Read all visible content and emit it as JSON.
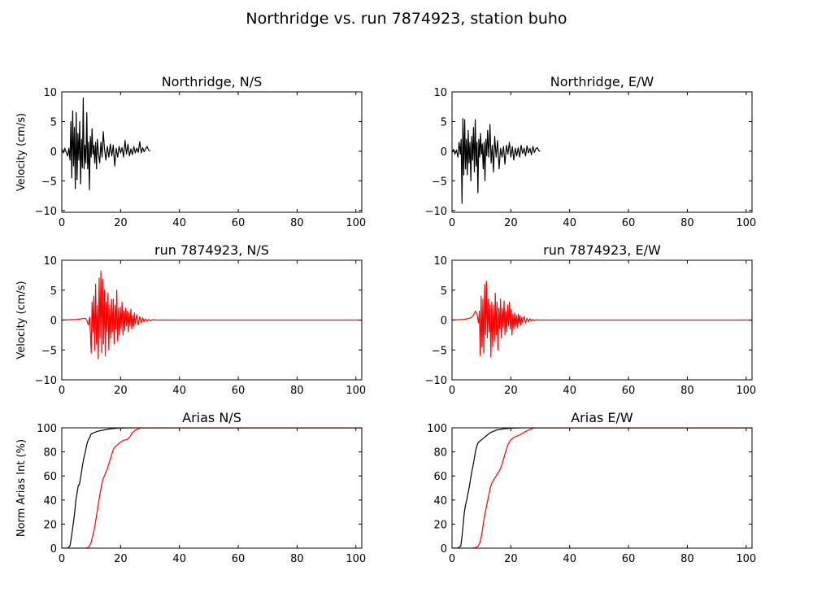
{
  "figure": {
    "title": "Northridge vs. run 7874923, station buho"
  },
  "chart_data": [
    {
      "id": "nr-ns",
      "type": "line",
      "title": "Northridge, N/S",
      "xlabel": "",
      "ylabel": "Velocity (cm/s)",
      "xlim": [
        0,
        102
      ],
      "ylim": [
        -10.3,
        10
      ],
      "xticks": [
        0,
        20,
        40,
        60,
        80,
        100
      ],
      "yticks": [
        10,
        5,
        0,
        -5,
        -10
      ],
      "grid": false,
      "series": [
        {
          "color": "#000000",
          "x": [
            0,
            0.5,
            1,
            1.5,
            2,
            2.4,
            2.8,
            3.1,
            3.4,
            3.7,
            4,
            4.3,
            4.6,
            4.9,
            5.2,
            5.5,
            5.8,
            6.1,
            6.4,
            6.7,
            7,
            7.3,
            7.6,
            7.9,
            8.2,
            8.5,
            8.8,
            9.1,
            9.4,
            9.7,
            10,
            10.3,
            10.6,
            10.9,
            11.2,
            11.5,
            11.8,
            12.1,
            12.5,
            12.9,
            13.3,
            13.7,
            14.1,
            14.5,
            15,
            15.5,
            16,
            16.5,
            17,
            17.5,
            18,
            18.5,
            19,
            19.5,
            20,
            20.5,
            21,
            21.5,
            22,
            22.5,
            23,
            23.5,
            24,
            24.5,
            25,
            25.5,
            26,
            26.5,
            27,
            27.5,
            28,
            28.5,
            29,
            29.5,
            30
          ],
          "y": [
            0.4,
            -0.3,
            0.5,
            -0.2,
            -0.8,
            0.5,
            -1.5,
            5.0,
            -4.5,
            6.8,
            -2.5,
            4.0,
            -6.3,
            6.5,
            -4.8,
            3.0,
            -1.5,
            5.0,
            -5.5,
            2.0,
            -2.8,
            9.0,
            -3.0,
            1.0,
            -2.0,
            6.5,
            -3.0,
            1.5,
            -6.5,
            2.5,
            -1.0,
            3.8,
            -0.5,
            1.0,
            -2.0,
            1.5,
            -3.0,
            2.0,
            -0.5,
            -2.0,
            1.5,
            -1.0,
            3.3,
            0.5,
            -1.5,
            0.8,
            -1.0,
            1.2,
            -0.8,
            1.0,
            -2.5,
            0.5,
            -1.0,
            0.8,
            -0.3,
            0.6,
            -1.0,
            1.8,
            -0.5,
            1.2,
            -0.8,
            0.4,
            -0.6,
            0.8,
            -0.3,
            0.5,
            -0.2,
            1.6,
            -0.3,
            0.6,
            -0.1,
            0.4,
            0.8,
            0.2,
            0.0
          ]
        }
      ]
    },
    {
      "id": "nr-ew",
      "type": "line",
      "title": "Northridge, E/W",
      "xlabel": "",
      "ylabel": "",
      "xlim": [
        0,
        102
      ],
      "ylim": [
        -10.3,
        10
      ],
      "xticks": [
        0,
        20,
        40,
        60,
        80,
        100
      ],
      "yticks": [
        10,
        5,
        0,
        -5,
        -10
      ],
      "grid": false,
      "series": [
        {
          "color": "#000000",
          "x": [
            0,
            0.5,
            1,
            1.5,
            2,
            2.4,
            2.8,
            3.1,
            3.4,
            3.7,
            4,
            4.3,
            4.6,
            4.9,
            5.2,
            5.5,
            5.8,
            6.1,
            6.4,
            6.7,
            7,
            7.3,
            7.6,
            7.9,
            8.2,
            8.5,
            8.8,
            9.1,
            9.4,
            9.7,
            10,
            10.3,
            10.6,
            10.9,
            11.2,
            11.5,
            11.8,
            12.1,
            12.5,
            12.9,
            13.3,
            13.7,
            14.1,
            14.5,
            15,
            15.5,
            16,
            16.5,
            17,
            17.5,
            18,
            18.5,
            19,
            19.5,
            20,
            20.5,
            21,
            21.5,
            22,
            22.5,
            23,
            23.5,
            24,
            24.5,
            25,
            25.5,
            26,
            26.5,
            27,
            27.5,
            28,
            28.5,
            29,
            29.5,
            30
          ],
          "y": [
            -0.2,
            0.3,
            -0.5,
            0.2,
            -1.0,
            1.5,
            -0.5,
            2.0,
            -8.8,
            5.5,
            -4.0,
            5.3,
            -3.0,
            2.0,
            -4.0,
            3.5,
            -2.0,
            1.5,
            -5.0,
            2.5,
            -1.5,
            4.0,
            -3.5,
            5.3,
            -2.5,
            1.5,
            -7.0,
            2.0,
            -1.0,
            3.0,
            -0.5,
            1.2,
            -3.0,
            1.5,
            -5.0,
            2.0,
            -0.8,
            3.5,
            -1.0,
            4.5,
            -2.0,
            1.0,
            -3.5,
            2.5,
            -1.0,
            1.8,
            -3.0,
            0.5,
            -1.0,
            0.8,
            -2.2,
            1.0,
            -0.5,
            1.5,
            -1.0,
            0.8,
            -1.5,
            0.5,
            -0.8,
            0.6,
            -1.0,
            1.0,
            -0.4,
            0.5,
            -0.8,
            0.9,
            -0.3,
            0.5,
            -0.6,
            0.8,
            -0.2,
            0.4,
            0.6,
            0.1,
            0.0
          ]
        }
      ]
    },
    {
      "id": "run-ns",
      "type": "line",
      "title": "run 7874923, N/S",
      "xlabel": "",
      "ylabel": "Velocity (cm/s)",
      "xlim": [
        0,
        102
      ],
      "ylim": [
        -10,
        10
      ],
      "xticks": [
        0,
        20,
        40,
        60,
        80,
        100
      ],
      "yticks": [
        10,
        5,
        0,
        -5,
        -10
      ],
      "grid": false,
      "series": [
        {
          "color": "#ff0000",
          "x": [
            0,
            5,
            8,
            8.5,
            9,
            9.5,
            10,
            10.3,
            10.6,
            10.9,
            11.2,
            11.5,
            11.8,
            12.1,
            12.4,
            12.7,
            13,
            13.3,
            13.6,
            13.9,
            14.2,
            14.5,
            14.8,
            15.1,
            15.4,
            15.7,
            16,
            16.3,
            16.6,
            16.9,
            17.2,
            17.5,
            17.8,
            18.1,
            18.4,
            18.7,
            19,
            19.3,
            19.6,
            19.9,
            20.2,
            20.5,
            20.8,
            21.1,
            21.4,
            21.7,
            22,
            22.3,
            22.6,
            22.9,
            23.2,
            23.5,
            23.8,
            24.1,
            24.4,
            24.7,
            25,
            25.5,
            26,
            26.5,
            27,
            27.5,
            28,
            28.5,
            29,
            29.5,
            30,
            31,
            32,
            102
          ],
          "y": [
            0,
            0.1,
            0.3,
            0,
            -0.8,
            0.5,
            -5.5,
            3.0,
            -2.0,
            4.0,
            -5.0,
            6.0,
            -4.0,
            2.5,
            -6.5,
            7.0,
            -3.0,
            8.2,
            -5.5,
            6.8,
            -4.0,
            5.0,
            -6.0,
            3.0,
            -2.0,
            4.5,
            -5.0,
            2.5,
            -3.0,
            3.5,
            -2.0,
            3.5,
            -4.0,
            2.5,
            -1.5,
            5.0,
            -3.5,
            2.0,
            -2.5,
            2.2,
            -1.5,
            3.0,
            -2.5,
            1.5,
            -1.8,
            2.0,
            -1.0,
            1.5,
            -2.0,
            1.2,
            -1.0,
            1.8,
            -1.5,
            0.8,
            -1.0,
            1.2,
            -0.6,
            0.9,
            -0.8,
            0.6,
            -0.5,
            0.4,
            -0.3,
            0.2,
            -0.2,
            0.1,
            -0.1,
            0.05,
            0,
            0
          ]
        }
      ]
    },
    {
      "id": "run-ew",
      "type": "line",
      "title": "run 7874923, E/W",
      "xlabel": "",
      "ylabel": "",
      "xlim": [
        0,
        102
      ],
      "ylim": [
        -10,
        10
      ],
      "xticks": [
        0,
        20,
        40,
        60,
        80,
        100
      ],
      "yticks": [
        10,
        5,
        0,
        -5,
        -10
      ],
      "grid": false,
      "series": [
        {
          "color": "#ff0000",
          "x": [
            0,
            4,
            6,
            7,
            8,
            8.5,
            9,
            9.3,
            9.6,
            9.9,
            10.2,
            10.5,
            10.8,
            11.1,
            11.4,
            11.7,
            12,
            12.3,
            12.6,
            12.9,
            13.2,
            13.5,
            13.8,
            14.1,
            14.4,
            14.7,
            15,
            15.3,
            15.6,
            15.9,
            16.2,
            16.5,
            16.8,
            17.1,
            17.4,
            17.7,
            18,
            18.3,
            18.6,
            18.9,
            19.2,
            19.5,
            19.8,
            20.1,
            20.4,
            20.7,
            21,
            21.3,
            21.6,
            21.9,
            22.2,
            22.5,
            22.8,
            23.1,
            23.4,
            23.7,
            24,
            24.5,
            25,
            25.5,
            26,
            26.5,
            27,
            27.5,
            28,
            28.5,
            29,
            30,
            31,
            102
          ],
          "y": [
            0,
            0.1,
            0.3,
            0.6,
            1.5,
            1.0,
            -0.5,
            1.5,
            -6.0,
            4.0,
            -4.5,
            3.5,
            -5.5,
            6.0,
            -2.5,
            6.5,
            -3.0,
            3.5,
            -2.0,
            2.5,
            -6.2,
            3.0,
            -4.5,
            2.5,
            -3.5,
            4.5,
            -2.5,
            3.0,
            -5.0,
            2.0,
            -1.5,
            3.5,
            -3.0,
            2.0,
            -1.2,
            3.2,
            -2.5,
            1.5,
            -2.0,
            2.5,
            -1.0,
            3.0,
            -1.5,
            1.8,
            -2.5,
            1.0,
            -1.5,
            1.2,
            -1.0,
            0.8,
            -1.2,
            1.0,
            -0.5,
            0.8,
            -0.9,
            0.5,
            -0.4,
            0.6,
            -0.5,
            0.3,
            -0.3,
            0.2,
            -0.15,
            0.1,
            -0.1,
            0.05,
            0,
            0,
            0,
            0
          ]
        }
      ]
    },
    {
      "id": "arias-ns",
      "type": "line",
      "title": "Arias N/S",
      "xlabel": "",
      "ylabel": "Norm Arias Int (%)",
      "xlim": [
        0,
        102
      ],
      "ylim": [
        0,
        100
      ],
      "xticks": [
        0,
        20,
        40,
        60,
        80,
        100
      ],
      "yticks": [
        100,
        80,
        60,
        40,
        20,
        0
      ],
      "grid": false,
      "series": [
        {
          "color": "#000000",
          "x": [
            0,
            2,
            2.8,
            3.2,
            3.6,
            4,
            4.4,
            4.8,
            5.2,
            5.6,
            6,
            6.5,
            7,
            7.5,
            8,
            8.5,
            9,
            9.5,
            10,
            11,
            12,
            13,
            14,
            15,
            16,
            17,
            18,
            19,
            20,
            22,
            24,
            26,
            28,
            30,
            102
          ],
          "y": [
            0,
            0,
            2,
            8,
            15,
            22,
            30,
            40,
            46,
            52,
            53,
            60,
            68,
            75,
            80,
            86,
            90,
            92,
            95,
            96,
            97,
            97.5,
            98,
            98.5,
            99,
            99.3,
            99.5,
            99.7,
            99.8,
            99.9,
            100,
            100,
            100,
            100,
            100
          ]
        },
        {
          "color": "#ff0000",
          "x": [
            0,
            8,
            9,
            9.5,
            10,
            10.5,
            11,
            11.5,
            12,
            12.5,
            13,
            13.5,
            14,
            14.5,
            15,
            15.5,
            16,
            16.5,
            17,
            17.5,
            18,
            18.5,
            19,
            19.5,
            20,
            20.5,
            21,
            21.5,
            22,
            22.5,
            23,
            23.5,
            24,
            24.5,
            25,
            26,
            27,
            28,
            102
          ],
          "y": [
            0,
            0,
            0.5,
            2,
            5,
            10,
            15,
            22,
            30,
            38,
            45,
            52,
            57,
            60,
            63,
            66,
            70,
            74,
            78,
            82,
            84,
            85,
            86,
            87,
            88,
            89,
            89.5,
            90,
            90,
            91,
            92,
            94,
            96,
            97,
            98,
            99,
            100,
            100,
            100
          ]
        }
      ]
    },
    {
      "id": "arias-ew",
      "type": "line",
      "title": "Arias E/W",
      "xlabel": "",
      "ylabel": "",
      "xlim": [
        0,
        102
      ],
      "ylim": [
        0,
        100
      ],
      "xticks": [
        0,
        20,
        40,
        60,
        80,
        100
      ],
      "yticks": [
        100,
        80,
        60,
        40,
        20,
        0
      ],
      "grid": false,
      "series": [
        {
          "color": "#000000",
          "x": [
            0,
            2,
            3,
            3.4,
            3.8,
            4.2,
            4.6,
            5,
            5.4,
            5.8,
            6.2,
            6.6,
            7,
            7.4,
            7.8,
            8.2,
            8.6,
            9,
            9.5,
            10,
            11,
            12,
            13,
            14,
            15,
            16,
            17,
            18,
            19,
            20,
            22,
            24,
            26,
            28,
            102
          ],
          "y": [
            0,
            0,
            2,
            10,
            20,
            30,
            36,
            40,
            45,
            50,
            56,
            62,
            67,
            72,
            78,
            83,
            86,
            88,
            89,
            90,
            92,
            94,
            96,
            97,
            98,
            98.5,
            99,
            99.3,
            99.5,
            99.7,
            99.9,
            100,
            100,
            100,
            100
          ]
        },
        {
          "color": "#ff0000",
          "x": [
            0,
            7,
            8,
            8.5,
            9,
            9.5,
            10,
            10.5,
            11,
            11.5,
            12,
            12.5,
            13,
            13.5,
            14,
            14.5,
            15,
            15.5,
            16,
            16.5,
            17,
            17.5,
            18,
            18.5,
            19,
            19.5,
            20,
            20.5,
            21,
            22,
            23,
            24,
            25,
            26,
            27,
            28,
            102
          ],
          "y": [
            0,
            0,
            0.5,
            1,
            2,
            5,
            10,
            18,
            26,
            32,
            38,
            44,
            50,
            54,
            56,
            58,
            60,
            62,
            64,
            66,
            70,
            74,
            78,
            82,
            86,
            88,
            90,
            91,
            92,
            93,
            94,
            95.5,
            97,
            98,
            99,
            100,
            100
          ]
        }
      ]
    }
  ]
}
